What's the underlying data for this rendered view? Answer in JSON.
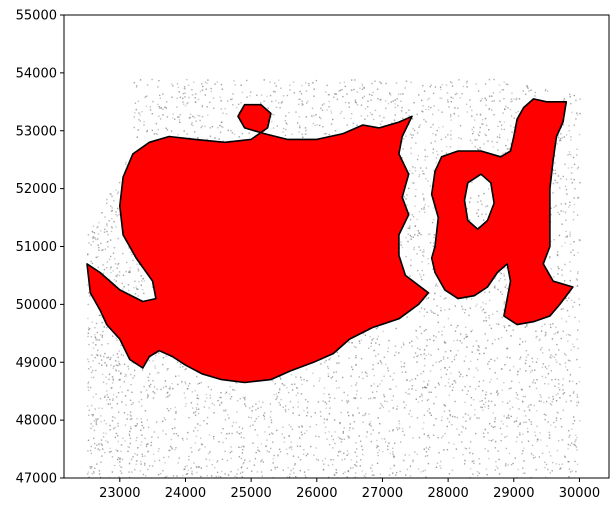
{
  "chart_data": {
    "type": "scatter",
    "title": "",
    "xlabel": "",
    "ylabel": "",
    "xlim": [
      22150,
      30450
    ],
    "ylim": [
      47000,
      55000
    ],
    "xticks": [
      23000,
      24000,
      25000,
      26000,
      27000,
      28000,
      29000,
      30000
    ],
    "yticks": [
      47000,
      48000,
      49000,
      50000,
      51000,
      52000,
      53000,
      54000,
      55000
    ],
    "xtick_labels": [
      "23000",
      "24000",
      "25000",
      "26000",
      "27000",
      "28000",
      "29000",
      "30000"
    ],
    "ytick_labels": [
      "47000",
      "48000",
      "49000",
      "50000",
      "51000",
      "52000",
      "53000",
      "54000",
      "55000"
    ],
    "grid": false,
    "background_points": {
      "color": "#808080",
      "x_range": [
        22500,
        30000
      ],
      "y_range": [
        47000,
        53900
      ]
    },
    "regions": [
      {
        "fill": "#ff0000",
        "outline": "#000000",
        "boundary": [
          [
            22500,
            50700
          ],
          [
            22700,
            50550
          ],
          [
            23000,
            50250
          ],
          [
            23350,
            50050
          ],
          [
            23550,
            50100
          ],
          [
            23500,
            50400
          ],
          [
            23250,
            50800
          ],
          [
            23050,
            51200
          ],
          [
            23000,
            51700
          ],
          [
            23050,
            52200
          ],
          [
            23200,
            52600
          ],
          [
            23450,
            52800
          ],
          [
            23750,
            52900
          ],
          [
            24150,
            52850
          ],
          [
            24600,
            52800
          ],
          [
            25000,
            52850
          ],
          [
            25250,
            53050
          ],
          [
            25300,
            53300
          ],
          [
            25150,
            53450
          ],
          [
            24900,
            53450
          ],
          [
            24800,
            53250
          ],
          [
            24900,
            53050
          ],
          [
            25200,
            52950
          ],
          [
            25550,
            52850
          ],
          [
            26000,
            52850
          ],
          [
            26400,
            52950
          ],
          [
            26700,
            53100
          ],
          [
            26950,
            53050
          ],
          [
            27250,
            53150
          ],
          [
            27450,
            53250
          ],
          [
            27300,
            52900
          ],
          [
            27250,
            52600
          ],
          [
            27400,
            52250
          ],
          [
            27300,
            51850
          ],
          [
            27400,
            51550
          ],
          [
            27250,
            51200
          ],
          [
            27250,
            50850
          ],
          [
            27350,
            50500
          ],
          [
            27700,
            50200
          ],
          [
            27550,
            50000
          ],
          [
            27250,
            49750
          ],
          [
            26850,
            49600
          ],
          [
            26500,
            49400
          ],
          [
            26250,
            49150
          ],
          [
            25950,
            49000
          ],
          [
            25600,
            48850
          ],
          [
            25300,
            48700
          ],
          [
            24900,
            48650
          ],
          [
            24550,
            48700
          ],
          [
            24250,
            48800
          ],
          [
            24000,
            48950
          ],
          [
            23800,
            49100
          ],
          [
            23600,
            49200
          ],
          [
            23450,
            49100
          ],
          [
            23350,
            48900
          ],
          [
            23150,
            49050
          ],
          [
            23000,
            49400
          ],
          [
            22800,
            49650
          ],
          [
            22700,
            49900
          ],
          [
            22550,
            50200
          ],
          [
            22500,
            50700
          ]
        ]
      },
      {
        "fill": "#ff0000",
        "outline": "#000000",
        "boundary": [
          [
            27800,
            51000
          ],
          [
            27850,
            51500
          ],
          [
            27750,
            51900
          ],
          [
            27800,
            52300
          ],
          [
            27900,
            52550
          ],
          [
            28150,
            52650
          ],
          [
            28500,
            52650
          ],
          [
            28800,
            52550
          ],
          [
            28950,
            52650
          ],
          [
            29000,
            52900
          ],
          [
            29050,
            53200
          ],
          [
            29150,
            53400
          ],
          [
            29300,
            53550
          ],
          [
            29500,
            53500
          ],
          [
            29800,
            53500
          ],
          [
            29750,
            53150
          ],
          [
            29650,
            52900
          ],
          [
            29600,
            52500
          ],
          [
            29550,
            52000
          ],
          [
            29550,
            51500
          ],
          [
            29550,
            51000
          ],
          [
            29450,
            50700
          ],
          [
            29600,
            50400
          ],
          [
            29900,
            50300
          ],
          [
            29700,
            50000
          ],
          [
            29550,
            49800
          ],
          [
            29300,
            49700
          ],
          [
            29050,
            49650
          ],
          [
            28850,
            49800
          ],
          [
            28900,
            50100
          ],
          [
            28950,
            50400
          ],
          [
            28900,
            50700
          ],
          [
            28750,
            50550
          ],
          [
            28600,
            50300
          ],
          [
            28400,
            50150
          ],
          [
            28150,
            50100
          ],
          [
            27950,
            50250
          ],
          [
            27800,
            50550
          ],
          [
            27750,
            50800
          ],
          [
            27800,
            51000
          ]
        ],
        "hole": [
          [
            28300,
            52100
          ],
          [
            28500,
            52250
          ],
          [
            28650,
            52100
          ],
          [
            28700,
            51750
          ],
          [
            28600,
            51450
          ],
          [
            28450,
            51300
          ],
          [
            28300,
            51450
          ],
          [
            28250,
            51800
          ],
          [
            28300,
            52100
          ]
        ]
      }
    ]
  }
}
